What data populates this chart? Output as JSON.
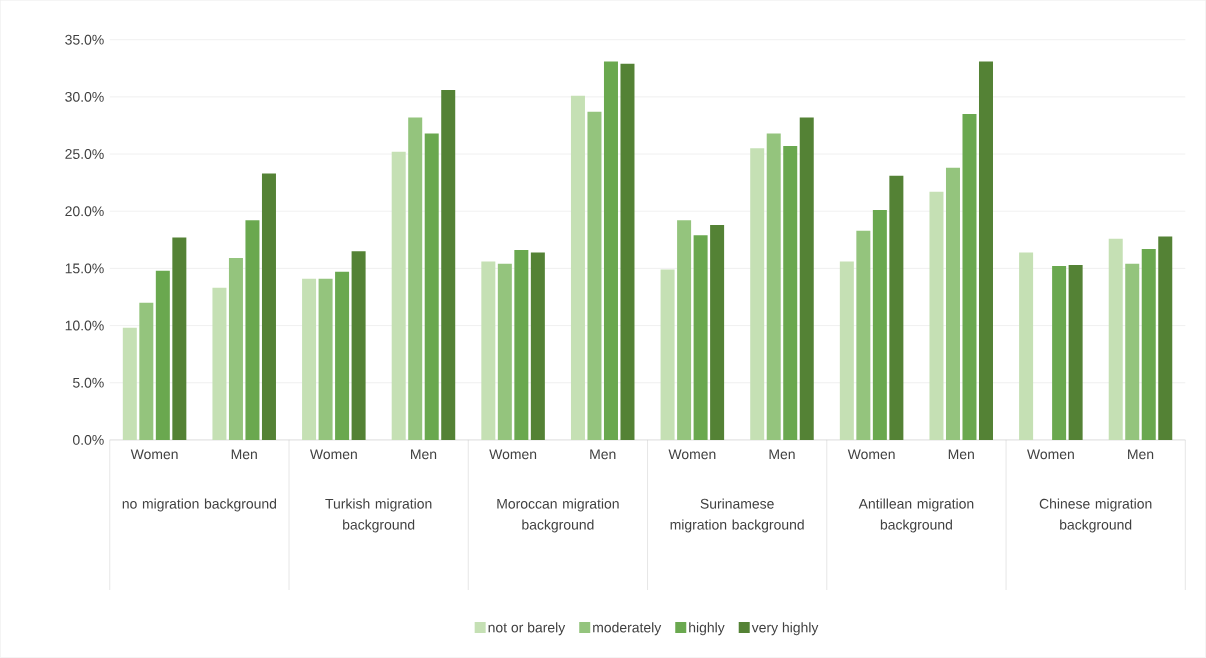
{
  "chart_data": {
    "type": "bar",
    "categories": [
      "Women",
      "Men",
      "Women",
      "Men",
      "Women",
      "Men",
      "Women",
      "Men",
      "Women",
      "Men",
      "Women",
      "Men"
    ],
    "annotations": [
      "no migration background",
      "Turkish migration background",
      "Moroccan migration background",
      "Surinamese migration background",
      "Antillean migration background",
      "Chinese migration background"
    ],
    "series": [
      {
        "name": "not or barely",
        "color": "#c5e0b4",
        "values": [
          9.8,
          13.3,
          14.1,
          25.2,
          15.6,
          30.1,
          14.9,
          25.5,
          15.6,
          21.7,
          16.4,
          17.6
        ]
      },
      {
        "name": "moderately",
        "color": "#94c47d",
        "values": [
          12.0,
          15.9,
          14.1,
          28.2,
          15.4,
          28.7,
          19.2,
          26.8,
          18.3,
          23.8,
          null,
          15.4
        ]
      },
      {
        "name": "highly",
        "color": "#6aa84f",
        "values": [
          14.8,
          19.2,
          14.7,
          26.8,
          16.6,
          33.1,
          17.9,
          25.7,
          20.1,
          28.5,
          15.2,
          16.7
        ]
      },
      {
        "name": "very highly",
        "color": "#548235",
        "values": [
          17.7,
          23.3,
          16.5,
          30.6,
          16.4,
          32.9,
          18.8,
          28.2,
          23.1,
          33.1,
          15.3,
          17.8
        ]
      }
    ],
    "ylim": [
      0,
      35
    ],
    "yticks": [
      {
        "value": 0,
        "label": "0.0%"
      },
      {
        "value": 5,
        "label": "5.0%"
      },
      {
        "value": 10,
        "label": "10.0%"
      },
      {
        "value": 15,
        "label": "15.0%"
      },
      {
        "value": 20,
        "label": "20.0%"
      },
      {
        "value": 25,
        "label": "25.0%"
      },
      {
        "value": 30,
        "label": "30.0%"
      },
      {
        "value": 35,
        "label": "35.0%"
      }
    ],
    "grid": "y",
    "legend": "bottom"
  }
}
